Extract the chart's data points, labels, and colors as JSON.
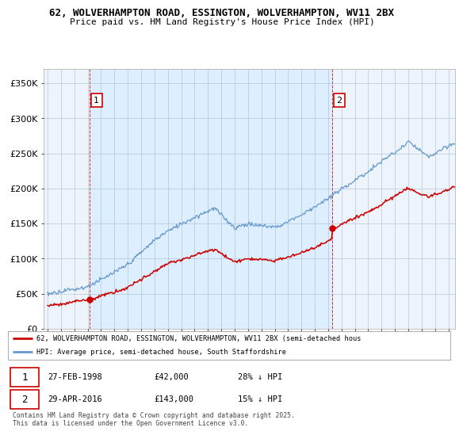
{
  "title_line1": "62, WOLVERHAMPTON ROAD, ESSINGTON, WOLVERHAMPTON, WV11 2BX",
  "title_line2": "Price paid vs. HM Land Registry's House Price Index (HPI)",
  "ylim": [
    0,
    370000
  ],
  "yticks": [
    0,
    50000,
    100000,
    150000,
    200000,
    250000,
    300000,
    350000
  ],
  "ytick_labels": [
    "£0",
    "£50K",
    "£100K",
    "£150K",
    "£200K",
    "£250K",
    "£300K",
    "£350K"
  ],
  "sale1_x": 1998.15,
  "sale1_price": 42000,
  "sale2_x": 2016.33,
  "sale2_price": 143000,
  "vline1_x": 1998.15,
  "vline2_x": 2016.33,
  "legend_line1": "62, WOLVERHAMPTON ROAD, ESSINGTON, WOLVERHAMPTON, WV11 2BX (semi-detached hous",
  "legend_line2": "HPI: Average price, semi-detached house, South Staffordshire",
  "annotation1_date": "27-FEB-1998",
  "annotation1_price": "£42,000",
  "annotation1_hpi": "28% ↓ HPI",
  "annotation2_date": "29-APR-2016",
  "annotation2_price": "£143,000",
  "annotation2_hpi": "15% ↓ HPI",
  "footer": "Contains HM Land Registry data © Crown copyright and database right 2025.\nThis data is licensed under the Open Government Licence v3.0.",
  "bg_color": "#ffffff",
  "plot_bg_color": "#eef4fb",
  "grid_color": "#aabbcc",
  "red_color": "#cc0000",
  "blue_color": "#6699cc",
  "shade_color": "#ddeeff",
  "xmin": 1995.0,
  "xmax": 2025.5
}
